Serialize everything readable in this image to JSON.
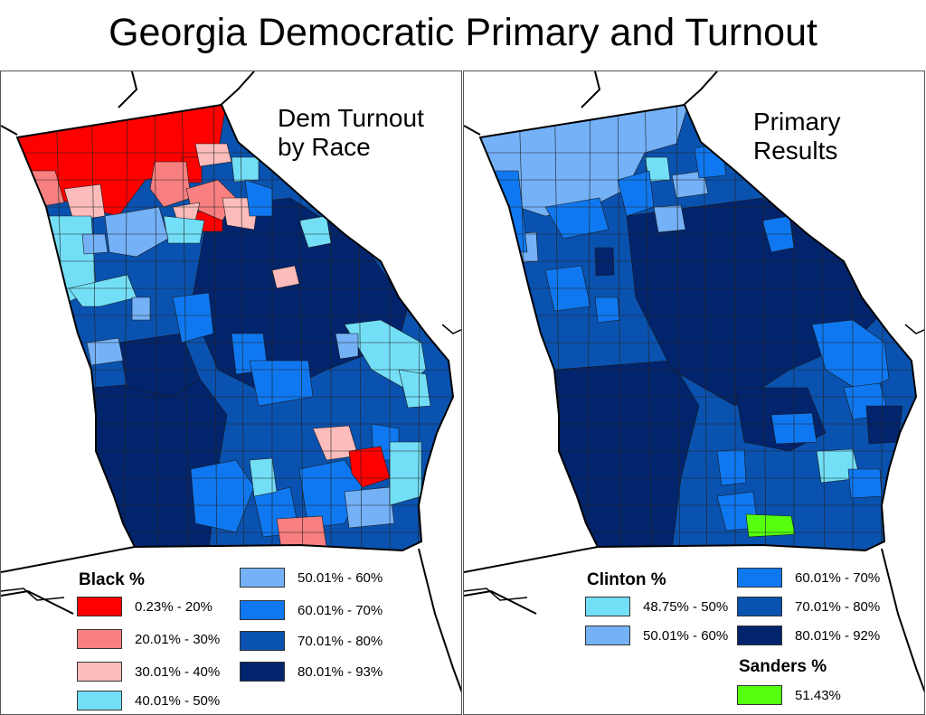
{
  "title": "Georgia Democratic Primary and Turnout",
  "left_map": {
    "title_lines": [
      "Dem Turnout",
      "by Race"
    ],
    "legend_title": "Black %",
    "legend": [
      {
        "label": "0.23% - 20%",
        "color": "#ff0000"
      },
      {
        "label": "20.01% - 30%",
        "color": "#f88080"
      },
      {
        "label": "30.01% - 40%",
        "color": "#fcbcbc"
      },
      {
        "label": "40.01% - 50%",
        "color": "#73dff7"
      },
      {
        "label": "50.01% - 60%",
        "color": "#74b1f6"
      },
      {
        "label": "60.01% - 70%",
        "color": "#0f78f0"
      },
      {
        "label": "70.01% - 80%",
        "color": "#0a52af"
      },
      {
        "label": "80.01% - 93%",
        "color": "#02246d"
      }
    ]
  },
  "right_map": {
    "title_lines": [
      "Primary",
      "Results"
    ],
    "legend_title": "Clinton %",
    "legend": [
      {
        "label": "48.75% - 50%",
        "color": "#73dff7"
      },
      {
        "label": "50.01% - 60%",
        "color": "#74b1f6"
      },
      {
        "label": "60.01% - 70%",
        "color": "#0f78f0"
      },
      {
        "label": "70.01% - 80%",
        "color": "#0a52af"
      },
      {
        "label": "80.01% - 92%",
        "color": "#02246d"
      }
    ],
    "legend2_title": "Sanders %",
    "legend2": [
      {
        "label": "51.43%",
        "color": "#55ff0e"
      }
    ]
  }
}
